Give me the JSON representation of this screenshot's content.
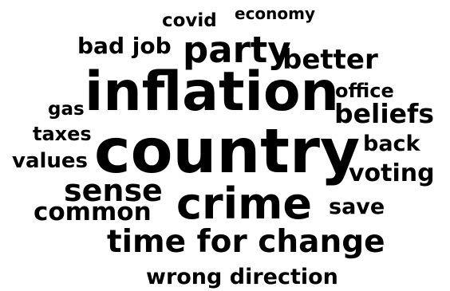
{
  "word_cloud": {
    "words": [
      {
        "id": "country",
        "text": "country"
      },
      {
        "id": "inflation",
        "text": "inflation"
      },
      {
        "id": "crime",
        "text": "crime"
      },
      {
        "id": "party",
        "text": "party"
      },
      {
        "id": "time_for_change",
        "text": "time for change"
      },
      {
        "id": "sense",
        "text": "sense"
      },
      {
        "id": "better",
        "text": "better"
      },
      {
        "id": "beliefs",
        "text": "beliefs"
      },
      {
        "id": "common",
        "text": "common"
      },
      {
        "id": "voting",
        "text": "voting"
      },
      {
        "id": "wrong_direction",
        "text": "wrong direction"
      },
      {
        "id": "bad_job",
        "text": "bad job"
      },
      {
        "id": "back",
        "text": "back"
      },
      {
        "id": "save",
        "text": "save"
      },
      {
        "id": "values",
        "text": "values"
      },
      {
        "id": "office",
        "text": "office"
      },
      {
        "id": "taxes",
        "text": "taxes"
      },
      {
        "id": "covid",
        "text": "covid"
      },
      {
        "id": "gas",
        "text": "gas"
      },
      {
        "id": "economy",
        "text": "economy"
      }
    ],
    "colors": {
      "background": "#ffffff",
      "text": "#000000"
    }
  }
}
